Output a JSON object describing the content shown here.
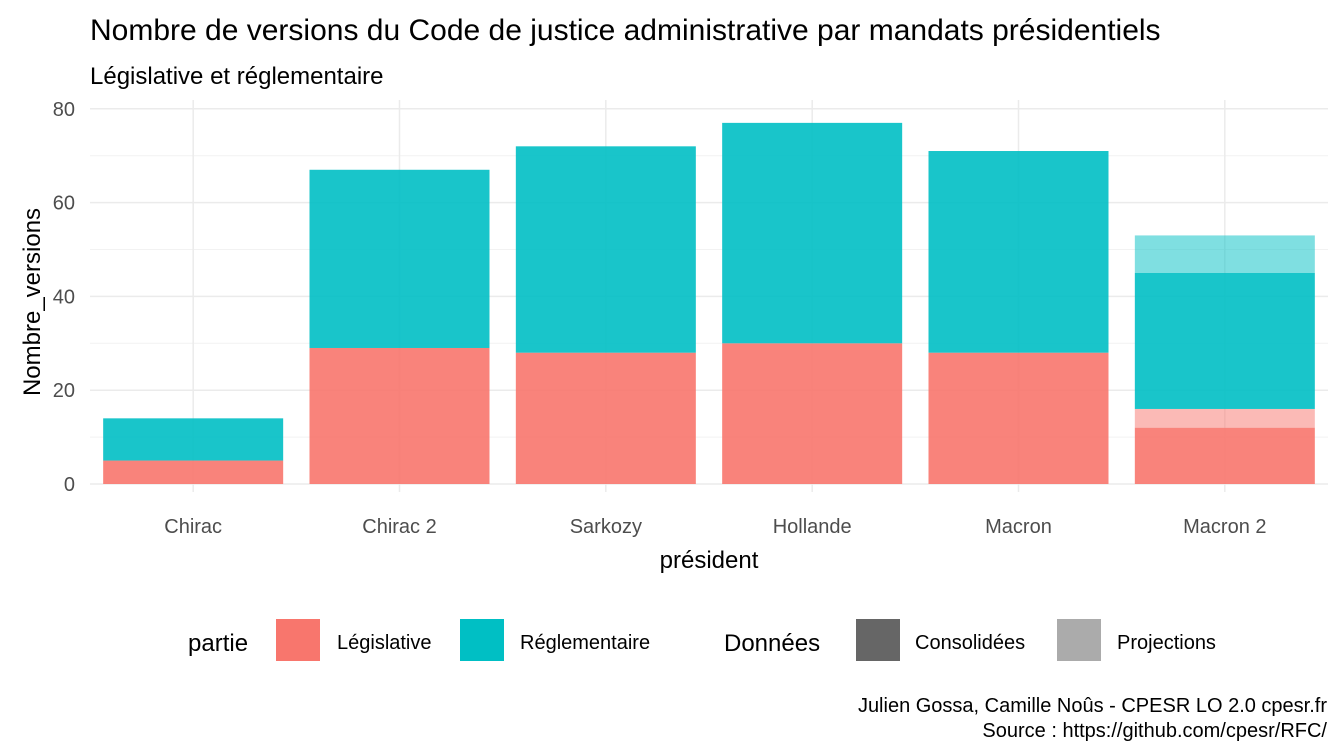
{
  "chart_data": {
    "type": "bar",
    "stacked": true,
    "title": "Nombre de versions du Code de justice administrative par mandats présidentiels",
    "subtitle": "Législative et réglementaire",
    "xlabel": "président",
    "ylabel": "Nombre_versions",
    "ylim": [
      0,
      80
    ],
    "yticks": [
      0,
      20,
      40,
      60,
      80
    ],
    "grid": true,
    "categories": [
      "Chirac",
      "Chirac 2",
      "Sarkozy",
      "Hollande",
      "Macron",
      "Macron 2"
    ],
    "series": [
      {
        "name": "Législative",
        "color": "#F8766D",
        "consolidated": [
          5,
          29,
          28,
          30,
          28,
          12
        ],
        "projection": [
          0,
          0,
          0,
          0,
          0,
          4
        ]
      },
      {
        "name": "Réglementaire",
        "color": "#00BFC4",
        "consolidated": [
          9,
          38,
          44,
          47,
          43,
          29
        ],
        "projection": [
          0,
          0,
          0,
          0,
          0,
          8
        ]
      }
    ],
    "legend": {
      "position": "bottom",
      "partie_title": "partie",
      "partie_items": [
        {
          "label": "Législative",
          "color": "#F8766D"
        },
        {
          "label": "Réglementaire",
          "color": "#00BFC4"
        }
      ],
      "donnees_title": "Données",
      "donnees_items": [
        {
          "label": "Consolidées",
          "color": "#666666"
        },
        {
          "label": "Projections",
          "color": "#ABABAB"
        }
      ]
    },
    "caption_line1": "Julien Gossa, Camille Noûs - CPESR LO 2.0 cpesr.fr",
    "caption_line2": "Source : https://github.com/cpesr/RFC/"
  }
}
